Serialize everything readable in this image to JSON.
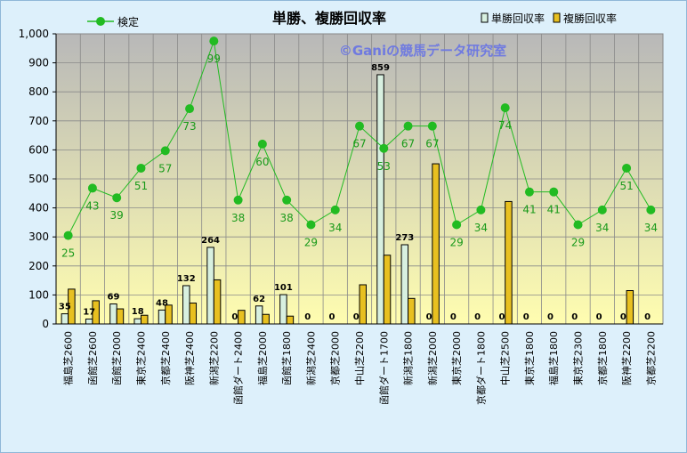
{
  "chart_data": {
    "type": "bar",
    "title": "単勝、複勝回収率",
    "watermark": "©Ganiの競馬データ研究室",
    "ylim": [
      0,
      1000
    ],
    "yticks": [
      "0",
      "100",
      "200",
      "300",
      "400",
      "500",
      "600",
      "700",
      "800",
      "900",
      "1,000"
    ],
    "categories": [
      "福島芝2600",
      "函館芝2600",
      "函館芝2000",
      "東京芝2400",
      "京都芝2400",
      "阪神芝2400",
      "新潟芝2200",
      "函館ダート2400",
      "福島芝2000",
      "函館芝1800",
      "新潟芝2400",
      "京都芝2000",
      "中山芝2200",
      "函館ダート1700",
      "新潟芝1800",
      "新潟芝2000",
      "東京芝2000",
      "京都ダート1800",
      "中山芝2500",
      "東京芝1800",
      "福島芝1800",
      "東京芝2300",
      "京都芝1800",
      "阪神芝2200",
      "京都芝2200"
    ],
    "series": [
      {
        "name": "単勝回収率",
        "kind": "bar",
        "color": "#d8f0e0",
        "values": [
          35,
          17,
          69,
          18,
          48,
          132,
          264,
          0,
          62,
          101,
          0,
          0,
          0,
          859,
          273,
          0,
          0,
          0,
          0,
          0,
          0,
          0,
          0,
          0,
          0
        ],
        "labels": [
          "35",
          "17",
          "69",
          "18",
          "48",
          "132",
          "264",
          "0",
          "62",
          "101",
          "0",
          "0",
          "0",
          "859",
          "273",
          "0",
          "0",
          "0",
          "0",
          "0",
          "0",
          "0",
          "0",
          "0",
          "0"
        ]
      },
      {
        "name": "複勝回収率",
        "kind": "bar",
        "color": "#e8c020",
        "values": [
          120,
          80,
          52,
          30,
          65,
          72,
          152,
          47,
          33,
          27,
          0,
          0,
          135,
          237,
          88,
          552,
          0,
          0,
          422,
          0,
          0,
          0,
          0,
          115,
          0
        ]
      },
      {
        "name": "検定",
        "kind": "line",
        "color": "#22bb22",
        "values": [
          305,
          468,
          435,
          537,
          597,
          742,
          975,
          427,
          620,
          427,
          342,
          393,
          682,
          605,
          682,
          682,
          342,
          393,
          745,
          455,
          455,
          342,
          393,
          537,
          393
        ],
        "labels": [
          "25",
          "43",
          "39",
          "51",
          "57",
          "73",
          "99",
          "38",
          "60",
          "38",
          "29",
          "34",
          "67",
          "53",
          "67",
          "67",
          "29",
          "34",
          "74",
          "41",
          "41",
          "29",
          "34",
          "51",
          "34"
        ]
      }
    ],
    "legend": [
      "検定",
      "単勝回収率",
      "複勝回収率"
    ],
    "grid": true
  }
}
